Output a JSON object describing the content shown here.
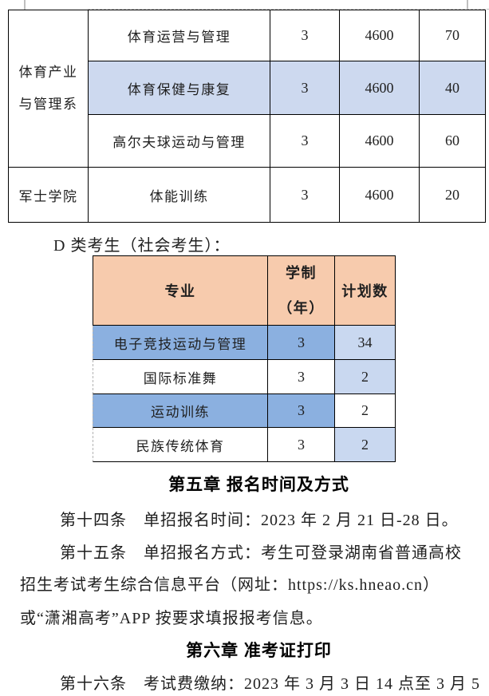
{
  "colors": {
    "table1_highlight": "#cdd9ef",
    "t2_header_bg": "#f7cbad",
    "t2_row_blue": "#8bb0e0",
    "t2_cell_lightblue": "#c9d8f0",
    "dashed_gray": "#bfbfbf"
  },
  "t1": {
    "dept1_line1": "体育产业",
    "dept1_line2": "与管理系",
    "dept2": "军士学院",
    "rows": [
      {
        "major": "体育运营与管理",
        "years": "3",
        "tuition": "4600",
        "plan": "70"
      },
      {
        "major": "体育保健与康复",
        "years": "3",
        "tuition": "4600",
        "plan": "40"
      },
      {
        "major": "高尔夫球运动与管理",
        "years": "3",
        "tuition": "4600",
        "plan": "60"
      },
      {
        "major": "体能训练",
        "years": "3",
        "tuition": "4600",
        "plan": "20"
      }
    ]
  },
  "labels": {
    "d_category": "D 类考生（社会考生）："
  },
  "t2": {
    "headers": {
      "major": "专业",
      "years_l1": "学制",
      "years_l2": "（年）",
      "plan": "计划数"
    },
    "rows": [
      {
        "major": "电子竞技运动与管理",
        "years": "3",
        "plan": "34"
      },
      {
        "major": "国际标准舞",
        "years": "3",
        "plan": "2"
      },
      {
        "major": "运动训练",
        "years": "3",
        "plan": "2"
      },
      {
        "major": "民族传统体育",
        "years": "3",
        "plan": "2"
      }
    ]
  },
  "chapter5": {
    "title": "第五章 报名时间及方式",
    "lines": [
      "第十四条　单招报名时间：2023 年 2 月 21 日-28 日。",
      "第十五条　单招报名方式：考生可登录湖南省普通高校",
      "招生考试考生综合信息平台（网址：https://ks.hneao.cn）",
      "或“潇湘高考”APP 按要求填报报考信息。"
    ]
  },
  "chapter6": {
    "title": "第六章 准考证打印",
    "lines": [
      "第十六条　考试费缴纳：2023 年 3 月 3 日 14 点至 3 月 5"
    ]
  }
}
